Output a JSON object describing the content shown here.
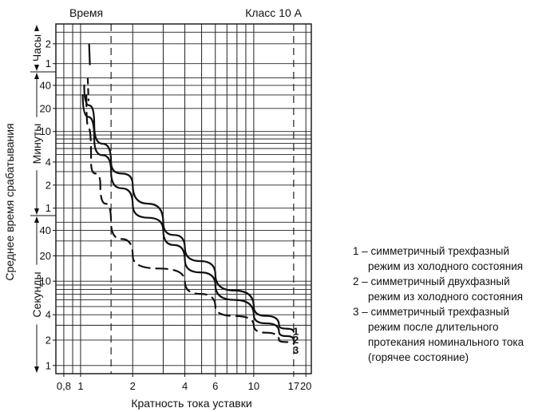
{
  "chart_data": {
    "type": "line",
    "top_left_label": "Время",
    "top_right_label": "Класс 10 А",
    "xlabel": "Кратность тока уставки",
    "ylabel": "Среднее время срабатывания",
    "x_scale": "log",
    "x_ticks": [
      {
        "value": 0.8,
        "label": "0,8"
      },
      {
        "value": 1,
        "label": "1"
      },
      {
        "value": 2,
        "label": "2"
      },
      {
        "value": 4,
        "label": "4"
      },
      {
        "value": 6,
        "label": "6"
      },
      {
        "value": 10,
        "label": "10"
      },
      {
        "value": 17,
        "label": "17"
      },
      {
        "value": 20,
        "label": "20"
      }
    ],
    "x_grid": [
      0.8,
      0.9,
      1,
      2,
      3,
      4,
      5,
      6,
      7,
      8,
      9,
      10,
      20
    ],
    "x_dashed": [
      1.5,
      17
    ],
    "y_bands": [
      {
        "name": "Часы",
        "ticks": [
          {
            "value": 2,
            "label": "2"
          },
          {
            "value": 1,
            "label": "1"
          }
        ]
      },
      {
        "name": "Минуты",
        "ticks": [
          {
            "value": 40,
            "label": "40"
          },
          {
            "value": 20,
            "label": "20"
          },
          {
            "value": 10,
            "label": "10"
          },
          {
            "value": 4,
            "label": "4"
          },
          {
            "value": 2,
            "label": "2"
          },
          {
            "value": 1,
            "label": "1"
          }
        ]
      },
      {
        "name": "Секунды",
        "ticks": [
          {
            "value": 40,
            "label": "40"
          },
          {
            "value": 20,
            "label": "20"
          },
          {
            "value": 10,
            "label": "10"
          },
          {
            "value": 4,
            "label": "4"
          },
          {
            "value": 2,
            "label": "2"
          },
          {
            "value": 1,
            "label": "1"
          }
        ]
      }
    ],
    "series": [
      {
        "name": "1",
        "style": "solid",
        "points": [
          [
            1.05,
            40
          ],
          [
            1.2,
            12
          ],
          [
            1.5,
            4
          ],
          [
            2,
            2
          ],
          [
            3,
            50
          ],
          [
            4,
            25
          ],
          [
            6,
            12
          ],
          [
            10,
            5
          ],
          [
            14,
            3
          ],
          [
            17,
            2.5
          ]
        ]
      },
      {
        "name": "2",
        "style": "solid",
        "points": [
          [
            1.03,
            30
          ],
          [
            1.2,
            8
          ],
          [
            1.5,
            3
          ],
          [
            2,
            80
          ],
          [
            3,
            40
          ],
          [
            4,
            18
          ],
          [
            6,
            9
          ],
          [
            10,
            4
          ],
          [
            14,
            2.5
          ],
          [
            17,
            2
          ]
        ]
      },
      {
        "name": "3",
        "style": "dashed",
        "points": [
          [
            1.08,
            30
          ],
          [
            1.15,
            4
          ],
          [
            1.3,
            2
          ],
          [
            1.5,
            50
          ],
          [
            2,
            20
          ],
          [
            4,
            10
          ],
          [
            6,
            5
          ],
          [
            10,
            3
          ],
          [
            14,
            2
          ],
          [
            17,
            1.8
          ]
        ]
      }
    ],
    "legend_items": [
      {
        "num": "1",
        "line1": "симметричный трехфазный",
        "line2": "режим из холодного состояния"
      },
      {
        "num": "2",
        "line1": "симметричный двухфазный",
        "line2": "режим из холодного состояния"
      },
      {
        "num": "3",
        "line1": "симметричный трехфазный",
        "line2": "режим после длительного",
        "line3": "протекания номинального тока",
        "line4": "(горячее состояние)"
      }
    ]
  }
}
